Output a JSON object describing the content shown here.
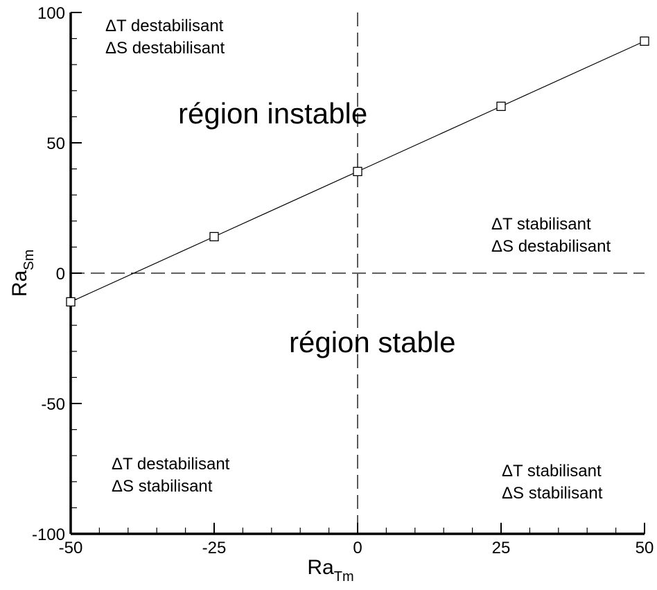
{
  "chart_data": {
    "type": "line",
    "xlabel": "Ra",
    "xlabel_sub": "Tm",
    "ylabel": "Ra",
    "ylabel_sub": "Sm",
    "xlim": [
      -50,
      50
    ],
    "ylim": [
      -100,
      100
    ],
    "x_ticks": [
      -50,
      -25,
      0,
      25,
      50
    ],
    "y_ticks": [
      -100,
      -50,
      0,
      50,
      100
    ],
    "x_minor_step": 5,
    "y_minor_step": 10,
    "grid": false,
    "series": [
      {
        "marker": "open-square",
        "color": "#000000",
        "x": [
          -50,
          -25,
          0,
          25,
          50
        ],
        "y": [
          -11,
          14,
          39,
          64,
          89
        ]
      }
    ],
    "reference_lines": [
      {
        "orientation": "horizontal",
        "value": 0,
        "style": "dashed"
      },
      {
        "orientation": "vertical",
        "value": 0,
        "style": "dashed"
      }
    ],
    "annotations": {
      "unstable_region": "région instable",
      "stable_region": "région stable",
      "top_left": [
        "ΔT destabilisant",
        "ΔS destabilisant"
      ],
      "right_middle": [
        "ΔT stabilisant",
        "ΔS destabilisant"
      ],
      "bottom_left": [
        "ΔT destabilisant",
        "ΔS stabilisant"
      ],
      "bottom_right": [
        "ΔT stabilisant",
        "ΔS stabilisant"
      ]
    }
  }
}
